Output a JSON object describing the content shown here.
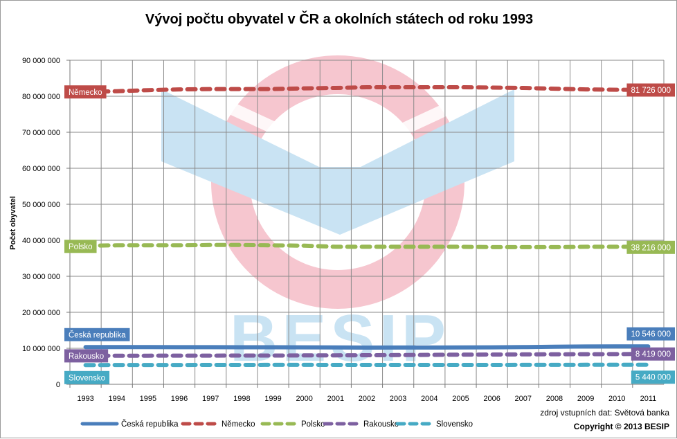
{
  "chart_data": {
    "type": "line",
    "title": "Vývoj počtu obyvatel v ČR a okolních státech od roku 1993",
    "ylabel": "Počet obyvatel",
    "xlabel": "",
    "ylim": [
      0,
      90000000
    ],
    "yticks": [
      0,
      10000000,
      20000000,
      30000000,
      40000000,
      50000000,
      60000000,
      70000000,
      80000000,
      90000000
    ],
    "ytick_labels": [
      "0",
      "10 000 000",
      "20 000 000",
      "30 000 000",
      "40 000 000",
      "50 000 000",
      "60 000 000",
      "70 000 000",
      "80 000 000",
      "90 000 000"
    ],
    "categories": [
      "1993",
      "1994",
      "1995",
      "1996",
      "1997",
      "1998",
      "1999",
      "2000",
      "2001",
      "2002",
      "2003",
      "2004",
      "2005",
      "2006",
      "2007",
      "2008",
      "2009",
      "2010",
      "2011"
    ],
    "grid": true,
    "legend_position": "bottom",
    "series": [
      {
        "name": "Česká republika",
        "color": "#4a7ebb",
        "style": "solid",
        "start_label": "Česká republika",
        "end_label": "10 546 000",
        "values": [
          10330000,
          10336000,
          10331000,
          10315000,
          10304000,
          10294000,
          10283000,
          10273000,
          10224000,
          10201000,
          10202000,
          10207000,
          10234000,
          10269000,
          10334000,
          10430000,
          10491000,
          10517000,
          10546000
        ]
      },
      {
        "name": "Německo",
        "color": "#be4b48",
        "style": "dashed",
        "start_label": "Německo",
        "end_label": "81 726 000",
        "values": [
          81200000,
          81400000,
          81700000,
          81900000,
          82000000,
          82000000,
          82000000,
          82200000,
          82300000,
          82500000,
          82500000,
          82500000,
          82500000,
          82400000,
          82300000,
          82100000,
          81900000,
          81800000,
          81726000
        ]
      },
      {
        "name": "Polsko",
        "color": "#98b954",
        "style": "dashed",
        "start_label": "Polsko",
        "end_label": "38 216 000",
        "values": [
          38500000,
          38600000,
          38600000,
          38600000,
          38700000,
          38700000,
          38600000,
          38500000,
          38200000,
          38200000,
          38200000,
          38200000,
          38200000,
          38100000,
          38100000,
          38100000,
          38200000,
          38200000,
          38216000
        ]
      },
      {
        "name": "Rakousko",
        "color": "#7d60a0",
        "style": "dashed",
        "start_label": "Rakousko",
        "end_label": "8 419 000",
        "values": [
          7900000,
          7950000,
          7950000,
          7960000,
          7970000,
          7980000,
          7990000,
          8010000,
          8040000,
          8080000,
          8120000,
          8170000,
          8230000,
          8270000,
          8300000,
          8340000,
          8360000,
          8390000,
          8419000
        ]
      },
      {
        "name": "Slovensko",
        "color": "#46aac4",
        "style": "dashed",
        "start_label": "Slovensko",
        "end_label": "5 440 000",
        "values": [
          5330000,
          5360000,
          5360000,
          5370000,
          5380000,
          5390000,
          5395000,
          5400000,
          5380000,
          5380000,
          5380000,
          5380000,
          5390000,
          5390000,
          5400000,
          5410000,
          5420000,
          5430000,
          5440000
        ]
      }
    ],
    "source_text": "zdroj vstupních dat: Světová banka",
    "copyright_text": "Copyright © 2013  BESIP",
    "watermark_text": "BESIP"
  }
}
